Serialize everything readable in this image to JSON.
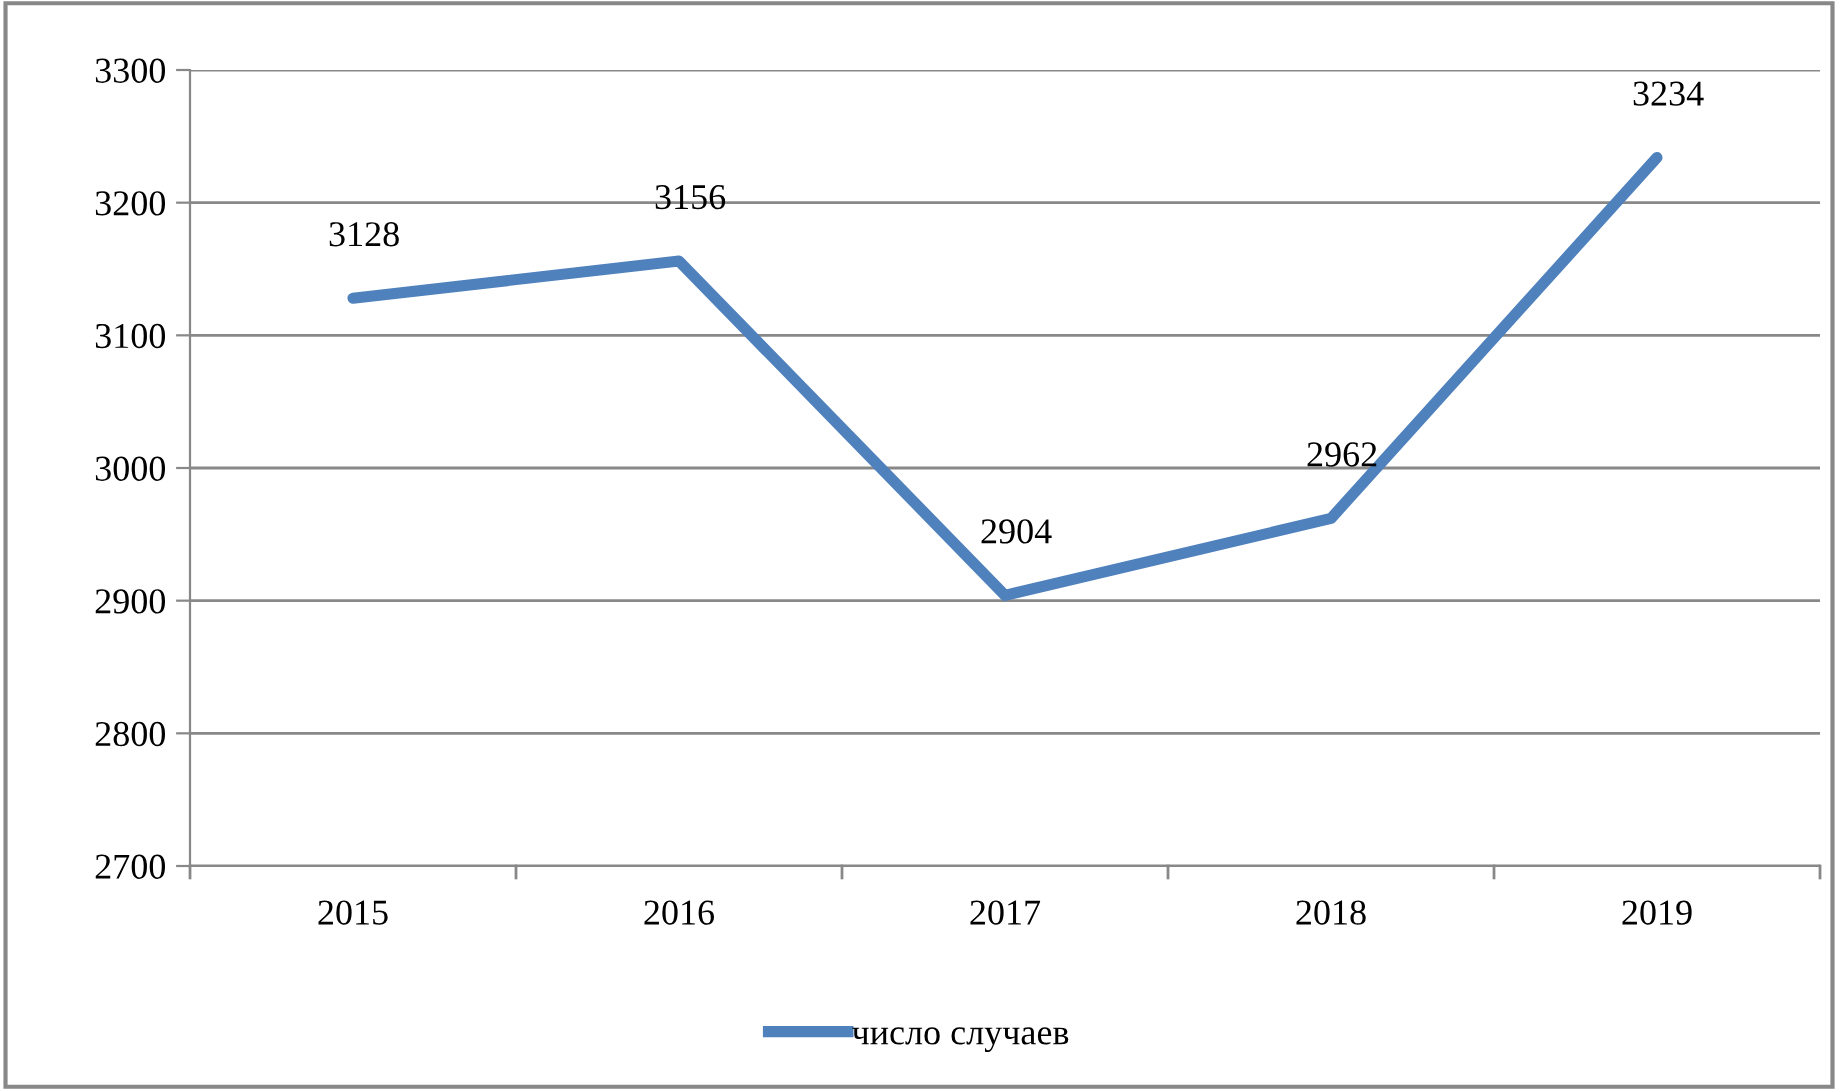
{
  "chart_data": {
    "type": "line",
    "categories": [
      "2015",
      "2016",
      "2017",
      "2018",
      "2019"
    ],
    "series": [
      {
        "name": "число случаев",
        "color": "#4f81bd",
        "values": [
          3128,
          3156,
          2904,
          2962,
          3234
        ]
      }
    ],
    "ylim": [
      2700,
      3300
    ],
    "yticks": [
      2700,
      2800,
      2900,
      3000,
      3100,
      3200,
      3300
    ],
    "grid": "y",
    "legend": "bottom",
    "data_labels": true,
    "marker": "none",
    "line_style": "solid"
  }
}
